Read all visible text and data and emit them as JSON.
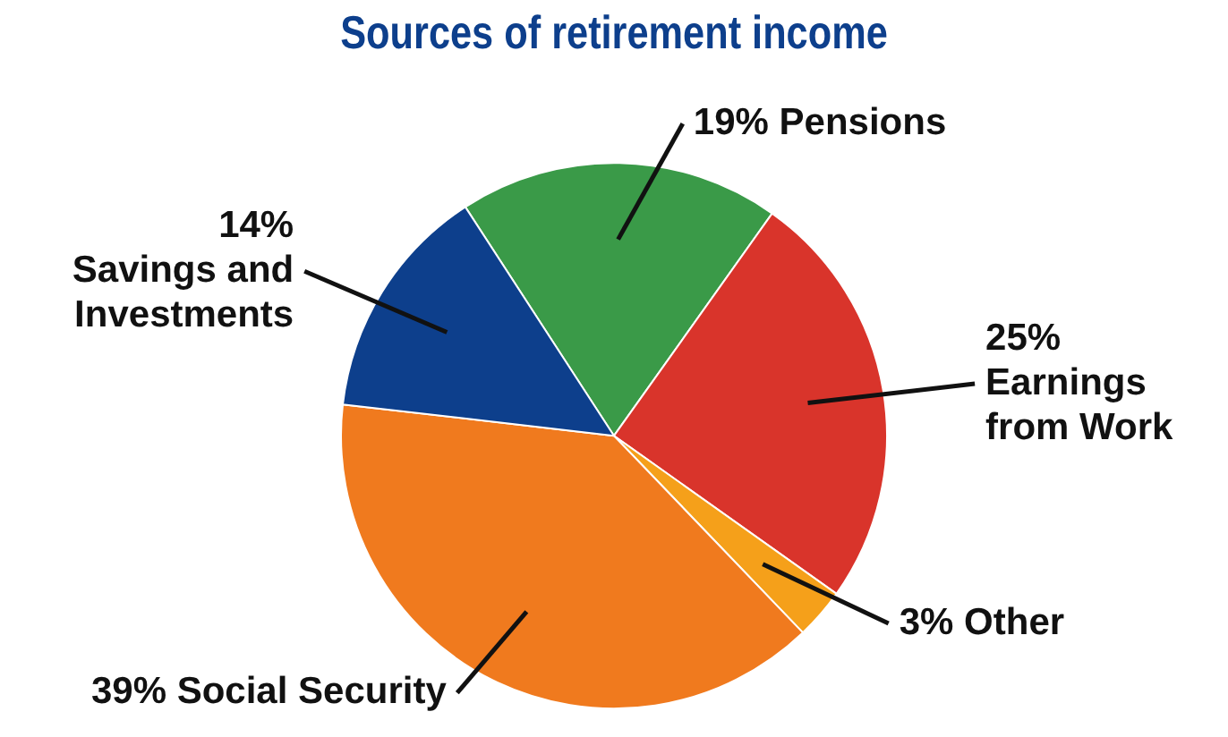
{
  "chart_data": {
    "type": "pie",
    "title": "Sources of retirement income",
    "categories": [
      "Pensions",
      "Earnings from Work",
      "Other",
      "Social Security",
      "Savings and Investments"
    ],
    "values": [
      19,
      25,
      3,
      39,
      14
    ],
    "value_labels": [
      "19%",
      "25%",
      "3%",
      "39%",
      "14%"
    ],
    "colors": [
      "#3a9a48",
      "#d9342b",
      "#f5a01a",
      "#f07a1e",
      "#0d3f8c"
    ],
    "legend": false
  }
}
